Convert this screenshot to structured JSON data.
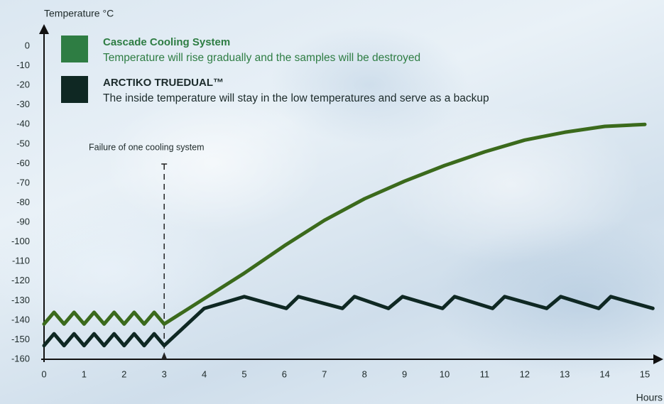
{
  "chart_data": {
    "type": "line",
    "y_label": "Temperature °C",
    "x_label": "Hours",
    "xlim": [
      0,
      15
    ],
    "ylim": [
      -160,
      0
    ],
    "xticks": [
      0,
      1,
      2,
      3,
      4,
      5,
      6,
      7,
      8,
      9,
      10,
      11,
      12,
      13,
      14,
      15
    ],
    "yticks": [
      0,
      -10,
      -20,
      -30,
      -40,
      -50,
      -60,
      -70,
      -80,
      -90,
      -100,
      -110,
      -120,
      -130,
      -140,
      -150,
      -160
    ],
    "grid": false,
    "annotation": {
      "text": "Failure of one cooling system",
      "x": 3
    },
    "series": [
      {
        "name": "Cascade Cooling System",
        "description": "Temperature will rise gradually and the samples will be destroyed",
        "color": "#3b6a1c",
        "legend_color": "#2e7d43",
        "text_color": "#2e7d43",
        "x": [
          0,
          0.25,
          0.5,
          0.75,
          1,
          1.25,
          1.5,
          1.75,
          2,
          2.25,
          2.5,
          2.75,
          3,
          4,
          5,
          6,
          7,
          8,
          9,
          10,
          11,
          12,
          13,
          14,
          15
        ],
        "values": [
          -142,
          -136,
          -142,
          -136,
          -142,
          -136,
          -142,
          -136,
          -142,
          -136,
          -142,
          -136,
          -142,
          -129,
          -116,
          -102,
          -89,
          -78,
          -69,
          -61,
          -54,
          -48,
          -44,
          -41,
          -40
        ]
      },
      {
        "name": "ARCTIKO TRUEDUAL™",
        "description": "The inside temperature will stay in the low temperatures and serve as a backup",
        "color": "#0f2823",
        "legend_color": "#0f2823",
        "text_color": "#1c2b2b",
        "x": [
          0,
          0.25,
          0.5,
          0.75,
          1,
          1.25,
          1.5,
          1.75,
          2,
          2.25,
          2.5,
          2.75,
          3,
          4,
          5,
          6.05,
          6.35,
          7.45,
          7.75,
          8.6,
          8.95,
          9.95,
          10.25,
          11.2,
          11.5,
          12.55,
          12.9,
          13.85,
          14.15,
          15.2
        ],
        "values": [
          -153,
          -147,
          -153,
          -147,
          -153,
          -147,
          -153,
          -147,
          -153,
          -147,
          -153,
          -147,
          -153,
          -134,
          -128,
          -134,
          -128,
          -134,
          -128,
          -134,
          -128,
          -134,
          -128,
          -134,
          -128,
          -134,
          -128,
          -134,
          -128,
          -134
        ]
      }
    ]
  }
}
